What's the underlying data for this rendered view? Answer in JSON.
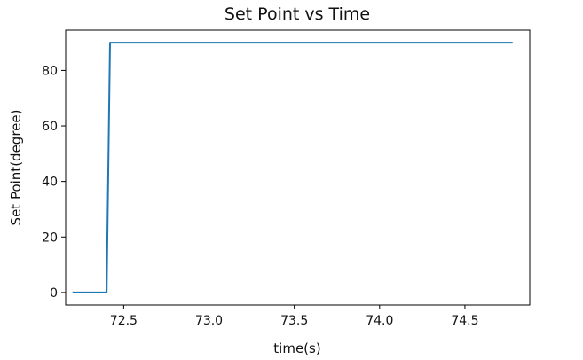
{
  "chart_data": {
    "type": "line",
    "title": "Set Point vs Time",
    "xlabel": "time(s)",
    "ylabel": "Set Point(degree)",
    "xlim": [
      72.16,
      74.88
    ],
    "ylim": [
      -4.5,
      94.5
    ],
    "xticks": [
      {
        "value": 72.5,
        "label": "72.5"
      },
      {
        "value": 73.0,
        "label": "73.0"
      },
      {
        "value": 73.5,
        "label": "73.5"
      },
      {
        "value": 74.0,
        "label": "74.0"
      },
      {
        "value": 74.5,
        "label": "74.5"
      }
    ],
    "yticks": [
      {
        "value": 0,
        "label": "0"
      },
      {
        "value": 20,
        "label": "20"
      },
      {
        "value": 40,
        "label": "40"
      },
      {
        "value": 60,
        "label": "60"
      },
      {
        "value": 80,
        "label": "80"
      }
    ],
    "grid": false,
    "series": [
      {
        "color": "#1f77b4",
        "x": [
          72.2,
          72.4,
          72.42,
          74.78
        ],
        "y": [
          0,
          0,
          90,
          90
        ]
      }
    ]
  }
}
